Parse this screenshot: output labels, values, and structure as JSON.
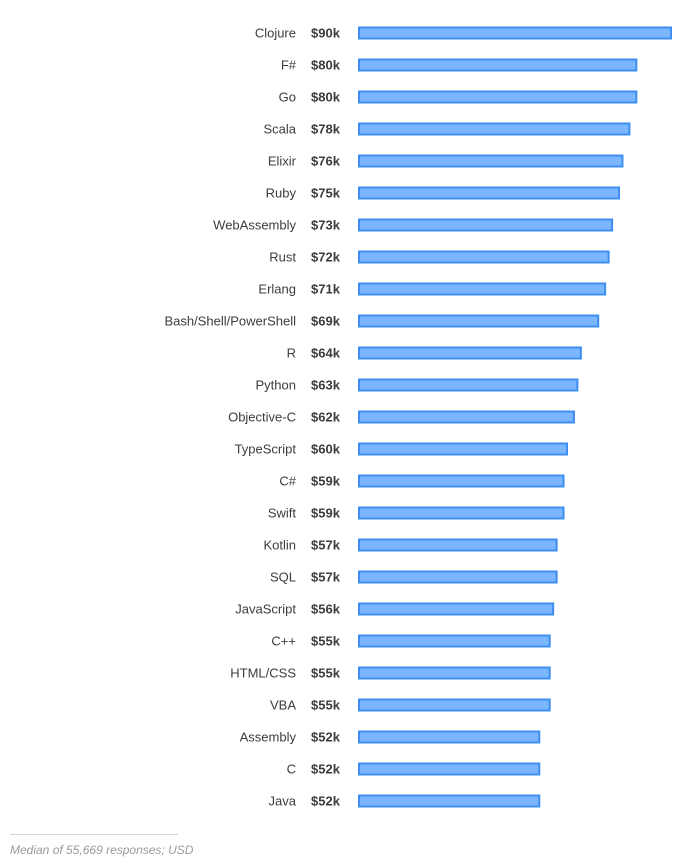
{
  "chart_data": {
    "type": "bar",
    "orientation": "horizontal",
    "categories": [
      "Clojure",
      "F#",
      "Go",
      "Scala",
      "Elixir",
      "Ruby",
      "WebAssembly",
      "Rust",
      "Erlang",
      "Bash/Shell/PowerShell",
      "R",
      "Python",
      "Objective-C",
      "TypeScript",
      "C#",
      "Swift",
      "Kotlin",
      "SQL",
      "JavaScript",
      "C++",
      "HTML/CSS",
      "VBA",
      "Assembly",
      "C",
      "Java"
    ],
    "values": [
      90,
      80,
      80,
      78,
      76,
      75,
      73,
      72,
      71,
      69,
      64,
      63,
      62,
      60,
      59,
      59,
      57,
      57,
      56,
      55,
      55,
      55,
      52,
      52,
      52
    ],
    "value_labels": [
      "$90k",
      "$80k",
      "$80k",
      "$78k",
      "$76k",
      "$75k",
      "$73k",
      "$72k",
      "$71k",
      "$69k",
      "$64k",
      "$63k",
      "$62k",
      "$60k",
      "$59k",
      "$59k",
      "$57k",
      "$57k",
      "$56k",
      "$55k",
      "$55k",
      "$55k",
      "$52k",
      "$52k",
      "$52k"
    ],
    "unit": "USD thousands",
    "xlim": [
      0,
      90
    ],
    "grid": false,
    "colors": {
      "bar_fill": "#7ab7ff",
      "bar_stroke": "#3d8ef0"
    }
  },
  "footnote": "Median of 55,669 responses; USD"
}
